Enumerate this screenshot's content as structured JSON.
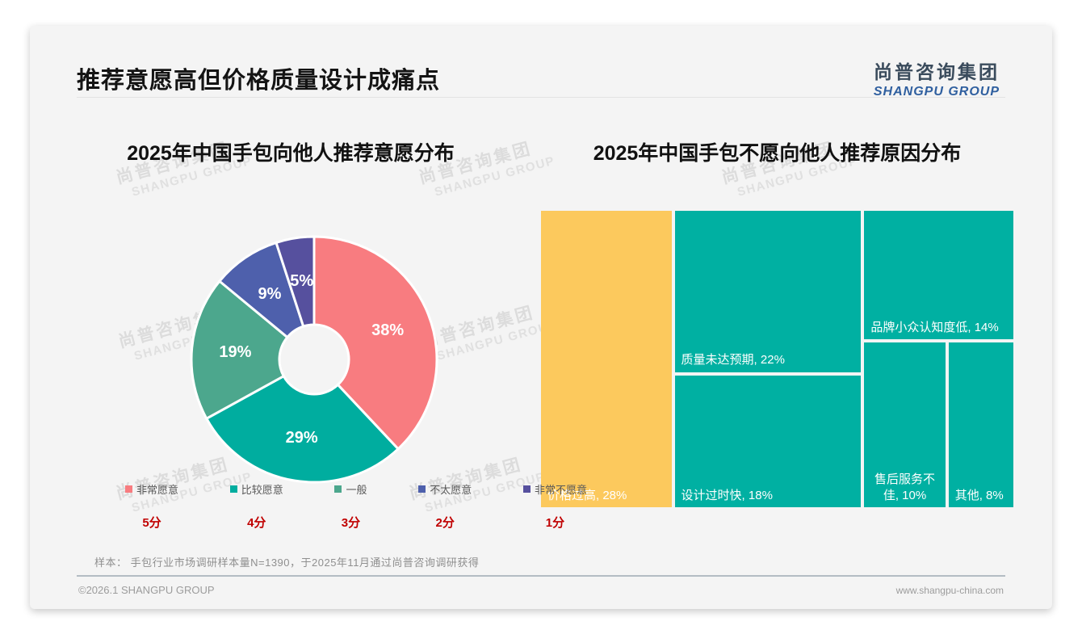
{
  "page": {
    "title": "推荐意愿高但价格质量设计成痛点",
    "logo": {
      "cn": "尚普咨询集团",
      "en": "SHANGPU GROUP"
    },
    "watermark": {
      "cn": "尚普咨询集团",
      "en": "SHANGPU GROUP"
    },
    "footnote": "样本：  手包行业市场调研样本量N=1390，于2025年11月通过尚普咨询调研获得",
    "footer_left": "©2026.1 SHANGPU GROUP",
    "footer_right": "www.shangpu-china.com"
  },
  "colors": {
    "card_bg": "#f4f4f4",
    "score_red": "#c00000",
    "treemap_teal": "#00b0a2",
    "treemap_yellow": "#fcc95d"
  },
  "chart_data": [
    {
      "type": "pie",
      "subtype": "donut",
      "title": "2025年中国手包向他人推荐意愿分布",
      "legend_position": "bottom",
      "label_format": "percent",
      "slices": [
        {
          "label": "非常愿意",
          "score": "5分",
          "value": 38,
          "color": "#f87c80"
        },
        {
          "label": "比较愿意",
          "score": "4分",
          "value": 29,
          "color": "#00ad9f"
        },
        {
          "label": "一般",
          "score": "3分",
          "value": 19,
          "color": "#4ca78d"
        },
        {
          "label": "不太愿意",
          "score": "2分",
          "value": 9,
          "color": "#4e60ac"
        },
        {
          "label": "非常不愿意",
          "score": "1分",
          "value": 5,
          "color": "#56509e"
        }
      ]
    },
    {
      "type": "treemap",
      "title": "2025年中国手包不愿向他人推荐原因分布",
      "cells": [
        {
          "label": "价格过高",
          "value": 28,
          "display": "价格过高, 28%",
          "color": "#fcc95d"
        },
        {
          "label": "质量未达预期",
          "value": 22,
          "display": "质量未达预期, 22%",
          "color": "#00b0a2"
        },
        {
          "label": "设计过时快",
          "value": 18,
          "display": "设计过时快, 18%",
          "color": "#00b0a2"
        },
        {
          "label": "品牌小众认知度低",
          "value": 14,
          "display": "品牌小众认知度低, 14%",
          "color": "#00b0a2"
        },
        {
          "label": "售后服务不佳",
          "value": 10,
          "display": "售后服务不佳, 10%",
          "color": "#00b0a2"
        },
        {
          "label": "其他",
          "value": 8,
          "display": "其他, 8%",
          "color": "#00b0a2"
        }
      ]
    }
  ]
}
